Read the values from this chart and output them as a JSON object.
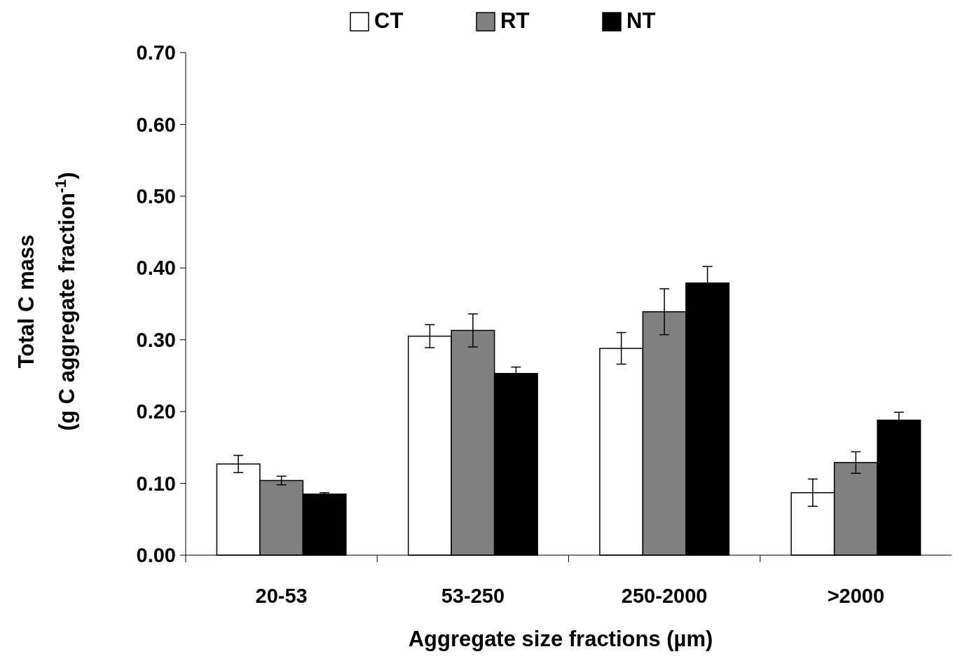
{
  "chart_data": {
    "type": "bar",
    "xlabel": "Aggregate size fractions (µm)",
    "ylabel": "Total C mass\n(g C  aggregate fraction$^{-1}$)",
    "categories": [
      "20-53",
      "53-250",
      "250-2000",
      ">2000"
    ],
    "series": [
      {
        "name": "CT",
        "color": "#ffffff",
        "values": [
          0.127,
          0.305,
          0.288,
          0.087
        ],
        "errors": [
          0.012,
          0.016,
          0.022,
          0.019
        ]
      },
      {
        "name": "RT",
        "color": "#808080",
        "values": [
          0.104,
          0.313,
          0.339,
          0.129
        ],
        "errors": [
          0.006,
          0.023,
          0.032,
          0.015
        ]
      },
      {
        "name": "NT",
        "color": "#000000",
        "values": [
          0.085,
          0.253,
          0.379,
          0.188
        ],
        "errors": [
          0.002,
          0.009,
          0.023,
          0.011
        ]
      }
    ],
    "ylim": [
      0,
      0.7
    ],
    "yticks": [
      {
        "value": 0,
        "label": "0.00"
      },
      {
        "value": 0.1,
        "label": "0.10"
      },
      {
        "value": 0.2,
        "label": "0.20"
      },
      {
        "value": 0.3,
        "label": "0.30"
      },
      {
        "value": 0.4,
        "label": "0.40"
      },
      {
        "value": 0.5,
        "label": "0.50"
      },
      {
        "value": 0.6,
        "label": "0.60"
      },
      {
        "value": 0.7,
        "label": "0.70"
      }
    ],
    "grid": false,
    "legend": "top"
  }
}
